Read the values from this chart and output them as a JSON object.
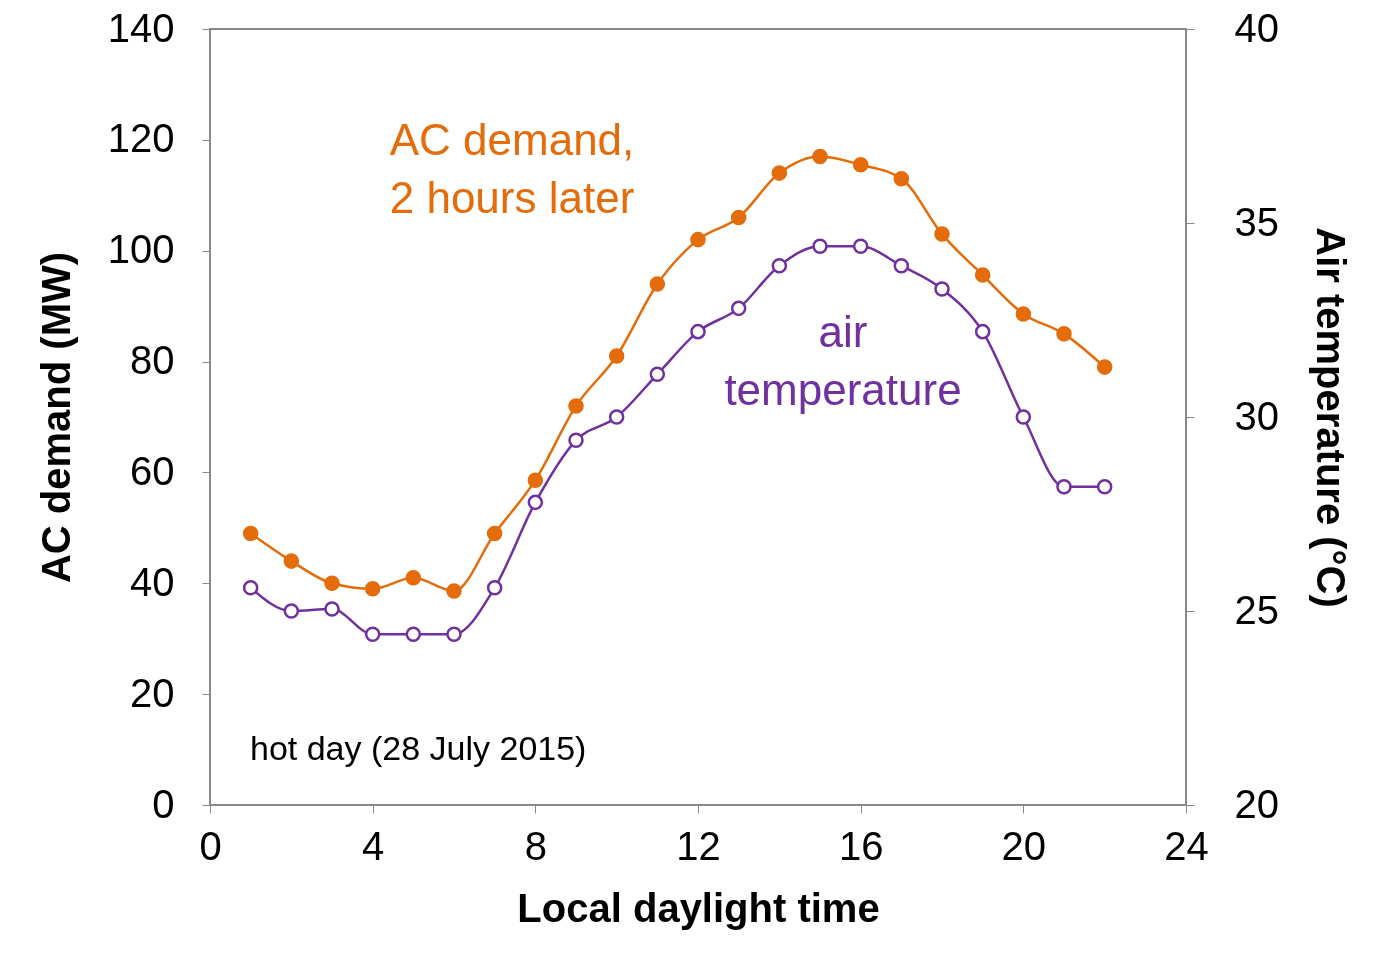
{
  "chart_data": {
    "type": "line",
    "xlabel": "Local daylight time",
    "ylabel": "AC demand (MW)",
    "y2label": "Air temperature (°C)",
    "x": [
      1,
      2,
      3,
      4,
      5,
      6,
      7,
      8,
      9,
      10,
      11,
      12,
      13,
      14,
      15,
      16,
      17,
      18,
      19,
      20,
      21,
      22
    ],
    "series": [
      {
        "name": "AC demand,\n2 hours later",
        "color": "#e46c0a",
        "values": [
          49,
          44,
          40,
          39,
          41,
          38.6,
          49,
          58.6,
          72,
          81,
          94,
          102,
          106,
          114,
          117,
          115.5,
          113,
          103,
          95.6,
          88.6,
          85,
          79
        ]
      },
      {
        "name": "air\ntemperature",
        "color": "#7030a0",
        "axis": "y2",
        "values": [
          25.6,
          25.0,
          25.05,
          24.4,
          24.4,
          24.4,
          25.6,
          27.8,
          29.4,
          30.0,
          31.1,
          32.2,
          32.8,
          33.9,
          34.4,
          34.4,
          33.9,
          33.3,
          32.2,
          30.0,
          28.2,
          28.2
        ]
      }
    ],
    "xlim": [
      0,
      24
    ],
    "xticks": [
      0,
      4,
      8,
      12,
      16,
      20,
      24
    ],
    "ylim": [
      0,
      140
    ],
    "yticks": [
      0,
      20,
      40,
      60,
      80,
      100,
      120,
      140
    ],
    "y2lim": [
      20,
      40
    ],
    "y2ticks": [
      20,
      25,
      30,
      35,
      40
    ],
    "annotations": [
      "hot day (28 July 2015)"
    ],
    "marker": "circle",
    "grid": false
  }
}
